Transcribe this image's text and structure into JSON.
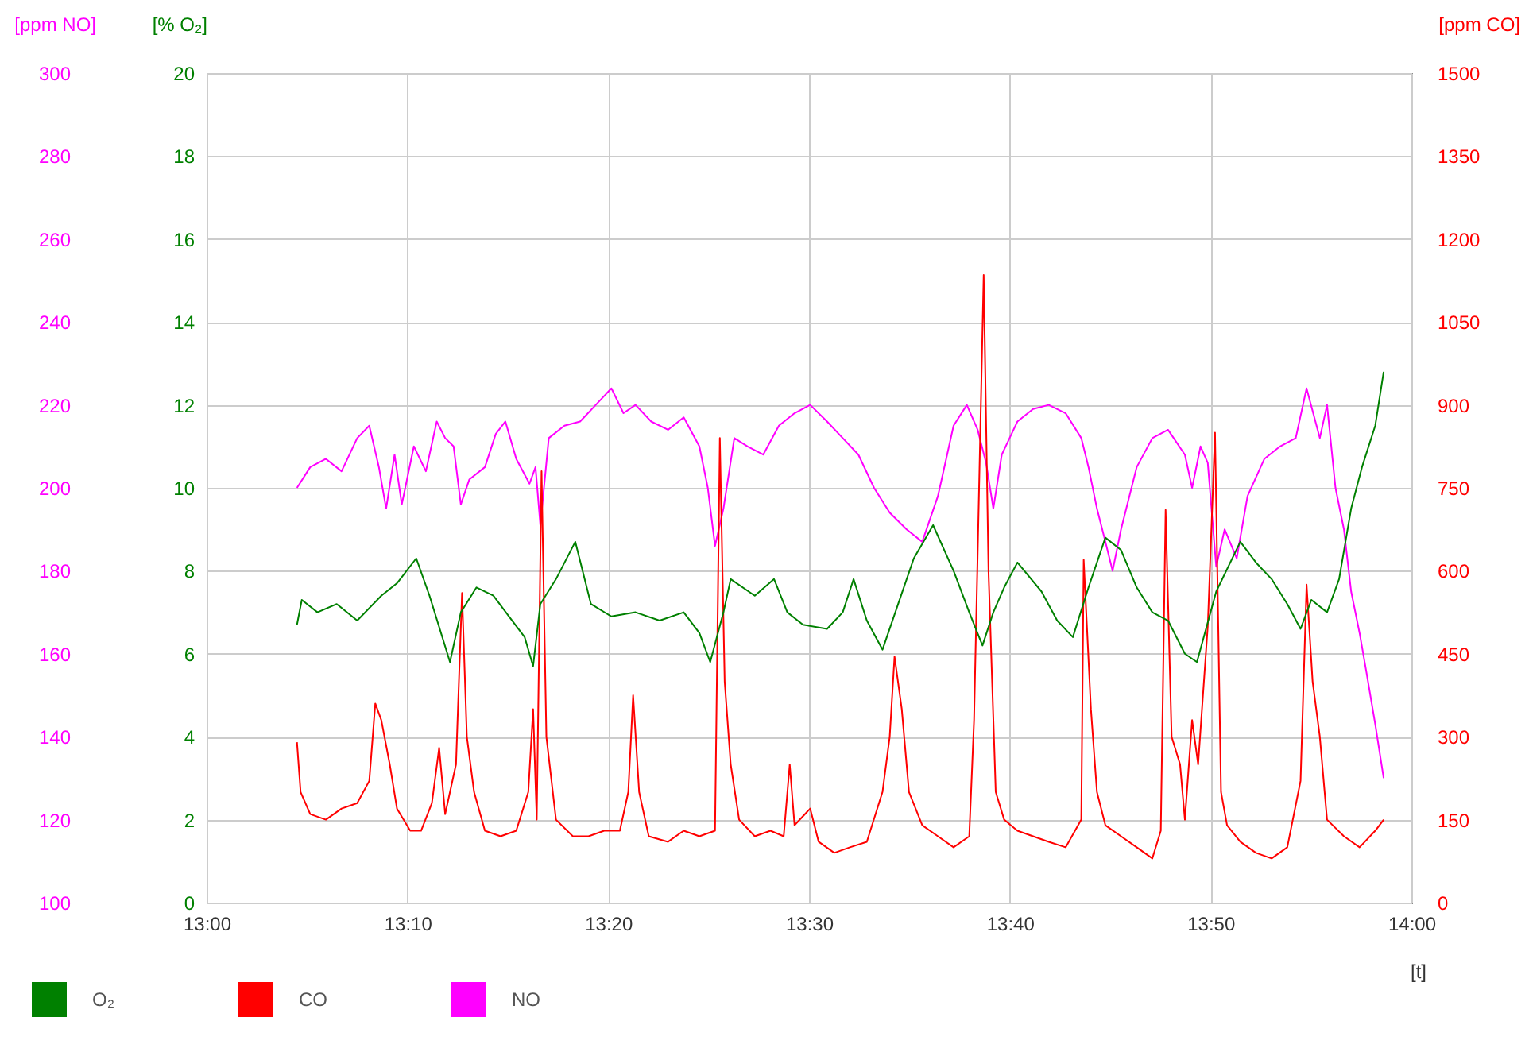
{
  "chart_data": {
    "type": "line",
    "xlabel": "[t]",
    "ylabel": "[% O₂]",
    "y2label": "[ppm CO]",
    "y3label": "[ppm NO]",
    "xlim": [
      13,
      14
    ],
    "xticks": [
      {
        "value": 13,
        "label": "13:00"
      },
      {
        "value": 13.1667,
        "label": "13:10"
      },
      {
        "value": 13.3333,
        "label": "13:20"
      },
      {
        "value": 13.5,
        "label": "13:30"
      },
      {
        "value": 13.6667,
        "label": "13:40"
      },
      {
        "value": 13.8333,
        "label": "13:50"
      },
      {
        "value": 14,
        "label": "14:00"
      }
    ],
    "ylim": [
      0,
      20
    ],
    "yticks": [
      0,
      2,
      4,
      6,
      8,
      10,
      12,
      14,
      16,
      18,
      20
    ],
    "y2lim": [
      0,
      1500
    ],
    "y2ticks": [
      0,
      150,
      300,
      450,
      600,
      750,
      900,
      1050,
      1200,
      1350,
      1500
    ],
    "y3lim": [
      100,
      300
    ],
    "y3ticks": [
      100,
      120,
      140,
      160,
      180,
      200,
      220,
      240,
      260,
      280,
      300
    ],
    "grid": true,
    "legend": "bottom left",
    "marker": "none",
    "line_style": "solid",
    "series": [
      {
        "name": "O₂",
        "color": "#008000",
        "x": [
          13.075,
          13.079,
          13.092,
          13.108,
          13.125,
          13.145,
          13.158,
          13.174,
          13.185,
          13.202,
          13.211,
          13.224,
          13.238,
          13.251,
          13.264,
          13.271,
          13.277,
          13.29,
          13.306,
          13.319,
          13.336,
          13.356,
          13.376,
          13.396,
          13.409,
          13.418,
          13.429,
          13.435,
          13.455,
          13.471,
          13.482,
          13.495,
          13.515,
          13.528,
          13.537,
          13.548,
          13.561,
          13.574,
          13.587,
          13.603,
          13.62,
          13.633,
          13.644,
          13.653,
          13.662,
          13.673,
          13.693,
          13.706,
          13.719,
          13.732,
          13.746,
          13.759,
          13.772,
          13.785,
          13.798,
          13.812,
          13.822,
          13.838,
          13.858,
          13.871,
          13.884,
          13.897,
          13.908,
          13.917,
          13.93,
          13.94,
          13.95,
          13.959,
          13.97,
          13.977
        ],
        "values": [
          6.7,
          7.3,
          7.0,
          7.2,
          6.8,
          7.4,
          7.7,
          8.3,
          7.4,
          5.8,
          7.0,
          7.6,
          7.4,
          6.9,
          6.4,
          5.7,
          7.2,
          7.8,
          8.7,
          7.2,
          6.9,
          7.0,
          6.8,
          7.0,
          6.5,
          5.8,
          7.0,
          7.8,
          7.4,
          7.8,
          7.0,
          6.7,
          6.6,
          7.0,
          7.8,
          6.8,
          6.1,
          7.2,
          8.3,
          9.1,
          8.0,
          7.0,
          6.2,
          7.0,
          7.6,
          8.2,
          7.5,
          6.8,
          6.4,
          7.6,
          8.8,
          8.5,
          7.6,
          7.0,
          6.8,
          6.0,
          5.8,
          7.5,
          8.7,
          8.2,
          7.8,
          7.2,
          6.6,
          7.3,
          7.0,
          7.8,
          9.5,
          10.5,
          11.5,
          12.8
        ]
      },
      {
        "name": "CO",
        "color": "#ff0000",
        "axis": "y2",
        "x": [
          13.075,
          13.078,
          13.086,
          13.099,
          13.112,
          13.125,
          13.135,
          13.14,
          13.145,
          13.152,
          13.158,
          13.169,
          13.178,
          13.187,
          13.193,
          13.198,
          13.207,
          13.212,
          13.216,
          13.222,
          13.231,
          13.244,
          13.257,
          13.267,
          13.271,
          13.274,
          13.278,
          13.282,
          13.29,
          13.304,
          13.317,
          13.33,
          13.343,
          13.35,
          13.354,
          13.359,
          13.367,
          13.383,
          13.396,
          13.409,
          13.422,
          13.426,
          13.43,
          13.435,
          13.442,
          13.455,
          13.468,
          13.479,
          13.484,
          13.488,
          13.501,
          13.508,
          13.521,
          13.534,
          13.548,
          13.561,
          13.567,
          13.571,
          13.577,
          13.583,
          13.594,
          13.607,
          13.62,
          13.633,
          13.637,
          13.645,
          13.649,
          13.655,
          13.662,
          13.673,
          13.686,
          13.699,
          13.713,
          13.726,
          13.728,
          13.734,
          13.739,
          13.746,
          13.759,
          13.772,
          13.785,
          13.792,
          13.796,
          13.801,
          13.808,
          13.812,
          13.818,
          13.823,
          13.831,
          13.837,
          13.842,
          13.847,
          13.858,
          13.871,
          13.884,
          13.897,
          13.908,
          13.913,
          13.918,
          13.924,
          13.93,
          13.944,
          13.957,
          13.97,
          13.977
        ],
        "values": [
          290,
          200,
          160,
          150,
          170,
          180,
          220,
          360,
          330,
          250,
          170,
          130,
          130,
          180,
          280,
          160,
          250,
          560,
          300,
          200,
          130,
          120,
          130,
          200,
          350,
          150,
          780,
          300,
          150,
          120,
          120,
          130,
          130,
          200,
          375,
          200,
          120,
          110,
          130,
          120,
          130,
          840,
          400,
          250,
          150,
          120,
          130,
          120,
          250,
          140,
          170,
          110,
          90,
          100,
          110,
          200,
          300,
          445,
          350,
          200,
          140,
          120,
          100,
          120,
          330,
          1135,
          600,
          200,
          150,
          130,
          120,
          110,
          100,
          150,
          620,
          350,
          200,
          140,
          120,
          100,
          80,
          130,
          710,
          300,
          250,
          150,
          330,
          250,
          500,
          850,
          200,
          140,
          110,
          90,
          80,
          100,
          220,
          575,
          400,
          300,
          150,
          120,
          100,
          130,
          150
        ]
      },
      {
        "name": "NO",
        "color": "#ff00ff",
        "axis": "y3",
        "x": [
          13.075,
          13.086,
          13.099,
          13.112,
          13.125,
          13.135,
          13.143,
          13.149,
          13.156,
          13.162,
          13.172,
          13.182,
          13.191,
          13.198,
          13.205,
          13.211,
          13.218,
          13.231,
          13.24,
          13.248,
          13.257,
          13.268,
          13.273,
          13.277,
          13.284,
          13.297,
          13.31,
          13.323,
          13.336,
          13.346,
          13.356,
          13.369,
          13.383,
          13.396,
          13.409,
          13.416,
          13.422,
          13.429,
          13.438,
          13.449,
          13.462,
          13.475,
          13.488,
          13.501,
          13.515,
          13.528,
          13.541,
          13.554,
          13.567,
          13.581,
          13.594,
          13.607,
          13.62,
          13.631,
          13.64,
          13.647,
          13.653,
          13.66,
          13.673,
          13.686,
          13.699,
          13.713,
          13.726,
          13.732,
          13.739,
          13.746,
          13.752,
          13.759,
          13.772,
          13.785,
          13.798,
          13.812,
          13.818,
          13.825,
          13.831,
          13.838,
          13.845,
          13.855,
          13.864,
          13.878,
          13.891,
          13.904,
          13.913,
          13.924,
          13.93,
          13.937,
          13.944,
          13.95,
          13.957,
          13.963,
          13.97,
          13.977
        ],
        "values": [
          200,
          205,
          207,
          204,
          212,
          215,
          205,
          195,
          208,
          196,
          210,
          204,
          216,
          212,
          210,
          196,
          202,
          205,
          213,
          216,
          207,
          201,
          205,
          191,
          212,
          215,
          216,
          220,
          224,
          218,
          220,
          216,
          214,
          217,
          210,
          200,
          186,
          195,
          212,
          210,
          208,
          215,
          218,
          220,
          216,
          212,
          208,
          200,
          194,
          190,
          187,
          198,
          215,
          220,
          214,
          206,
          195,
          208,
          216,
          219,
          220,
          218,
          212,
          205,
          195,
          187,
          180,
          190,
          205,
          212,
          214,
          208,
          200,
          210,
          206,
          181,
          190,
          183,
          198,
          207,
          210,
          212,
          224,
          212,
          220,
          200,
          190,
          175,
          165,
          155,
          143,
          130
        ]
      }
    ]
  }
}
